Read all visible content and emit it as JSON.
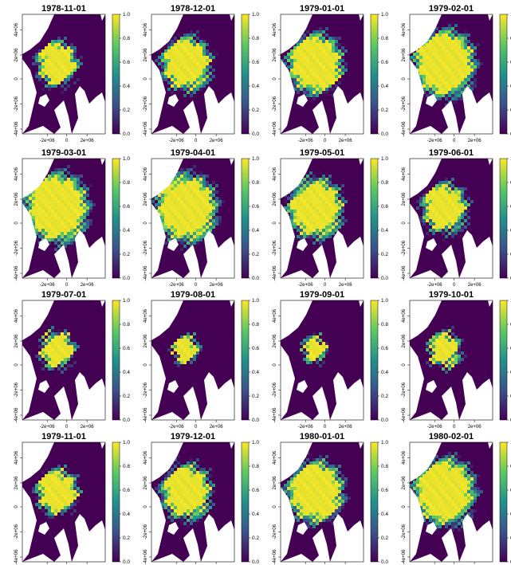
{
  "chart_data": {
    "type": "heatmap",
    "value_type": "sea ice concentration fraction",
    "colormap": "viridis",
    "colormap_stops": [
      "#440154",
      "#3b528b",
      "#21918c",
      "#5ec962",
      "#fde725"
    ],
    "land_color": "#ffffff",
    "grid": false,
    "legend_position": "right",
    "x_ticks": [
      "-2e+06",
      "0",
      "2e+06"
    ],
    "y_ticks": [
      "4e+06",
      "2e+06",
      "0",
      "-2e+06",
      "-4e+06"
    ],
    "colorbar_range": [
      0.0,
      1.0
    ],
    "colorbar_ticks": [
      "1.0",
      "0.8",
      "0.6",
      "0.4",
      "0.2",
      "0.0"
    ],
    "panels": [
      {
        "title": "1978-11-01",
        "ice_extent": 0.45
      },
      {
        "title": "1978-12-01",
        "ice_extent": 0.55
      },
      {
        "title": "1979-01-01",
        "ice_extent": 0.62
      },
      {
        "title": "1979-02-01",
        "ice_extent": 0.7
      },
      {
        "title": "1979-03-01",
        "ice_extent": 0.72
      },
      {
        "title": "1979-04-01",
        "ice_extent": 0.7
      },
      {
        "title": "1979-05-01",
        "ice_extent": 0.62
      },
      {
        "title": "1979-06-01",
        "ice_extent": 0.5
      },
      {
        "title": "1979-07-01",
        "ice_extent": 0.38
      },
      {
        "title": "1979-08-01",
        "ice_extent": 0.28
      },
      {
        "title": "1979-09-01",
        "ice_extent": 0.26
      },
      {
        "title": "1979-10-01",
        "ice_extent": 0.35
      },
      {
        "title": "1979-11-01",
        "ice_extent": 0.46
      },
      {
        "title": "1979-12-01",
        "ice_extent": 0.56
      },
      {
        "title": "1980-01-01",
        "ice_extent": 0.64
      },
      {
        "title": "1980-02-01",
        "ice_extent": 0.7
      }
    ]
  }
}
